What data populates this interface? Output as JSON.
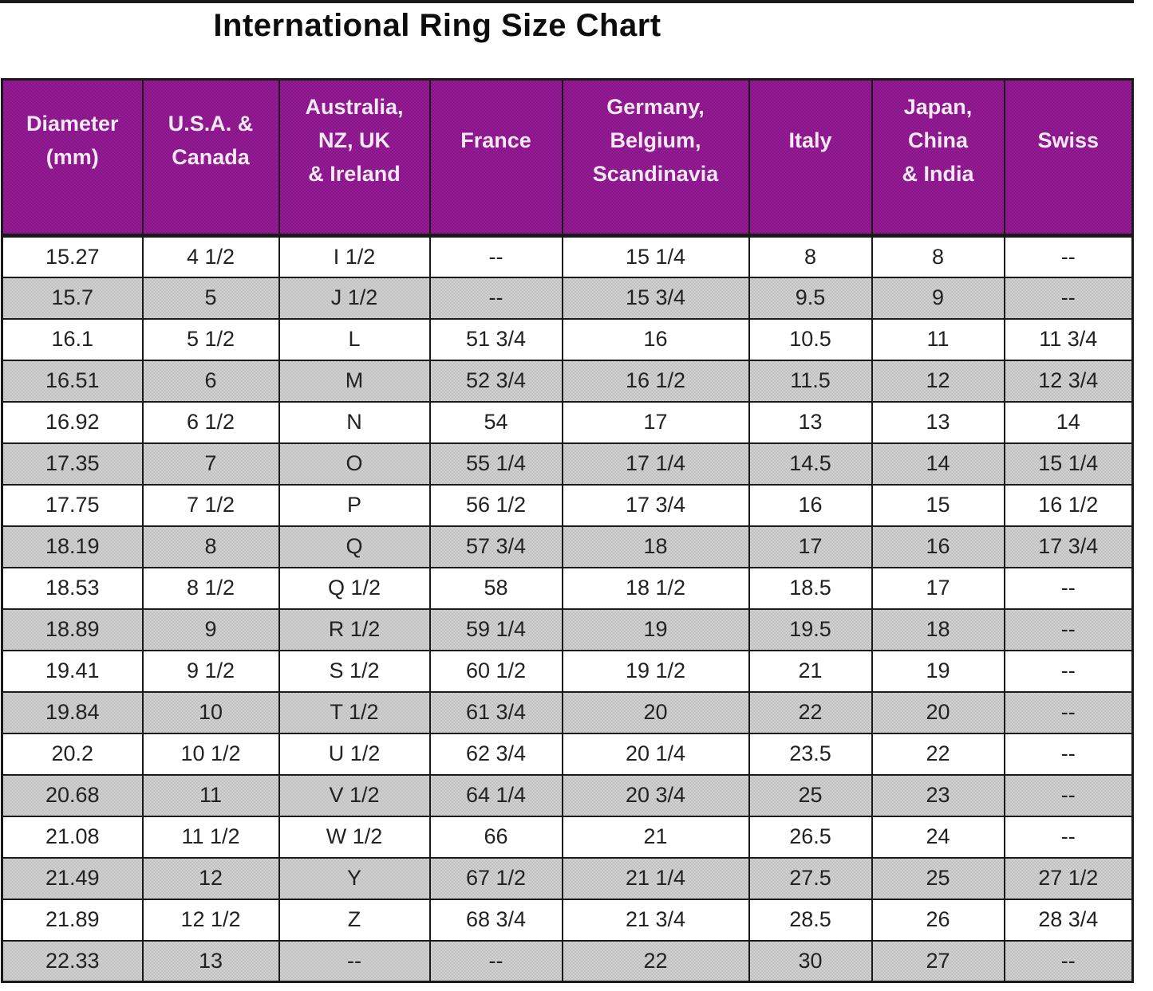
{
  "title": "International Ring Size Chart",
  "colors": {
    "header_bg": "#8E1B8E",
    "header_text": "#F6E9F6",
    "alt_row_bg": "#C9C9C9",
    "grid_border": "#1A1A1A",
    "cell_text": "#222222",
    "title_color": "#0D0D0D"
  },
  "chart_data": {
    "type": "table",
    "title": "International Ring Size Chart",
    "columns": [
      "Diameter (mm)",
      "U.S.A. & Canada",
      "Australia, NZ, UK & Ireland",
      "France",
      "Germany, Belgium, Scandinavia",
      "Italy",
      "Japan, China & India",
      "Swiss"
    ],
    "header_lines": [
      [
        "Diameter",
        "(mm)"
      ],
      [
        "U.S.A. &",
        "Canada"
      ],
      [
        "Australia,",
        "NZ, UK",
        "& Ireland"
      ],
      [
        "France"
      ],
      [
        "Germany,",
        "Belgium,",
        "Scandinavia"
      ],
      [
        "Italy"
      ],
      [
        "Japan,",
        "China",
        "& India"
      ],
      [
        "Swiss"
      ]
    ],
    "rows": [
      [
        "15.27",
        "4 1/2",
        "I 1/2",
        "--",
        "15 1/4",
        "8",
        "8",
        "--"
      ],
      [
        "15.7",
        "5",
        "J 1/2",
        "--",
        "15 3/4",
        "9.5",
        "9",
        "--"
      ],
      [
        "16.1",
        "5 1/2",
        "L",
        "51 3/4",
        "16",
        "10.5",
        "11",
        "11 3/4"
      ],
      [
        "16.51",
        "6",
        "M",
        "52 3/4",
        "16 1/2",
        "11.5",
        "12",
        "12 3/4"
      ],
      [
        "16.92",
        "6 1/2",
        "N",
        "54",
        "17",
        "13",
        "13",
        "14"
      ],
      [
        "17.35",
        "7",
        "O",
        "55 1/4",
        "17 1/4",
        "14.5",
        "14",
        "15 1/4"
      ],
      [
        "17.75",
        "7 1/2",
        "P",
        "56 1/2",
        "17 3/4",
        "16",
        "15",
        "16 1/2"
      ],
      [
        "18.19",
        "8",
        "Q",
        "57 3/4",
        "18",
        "17",
        "16",
        "17 3/4"
      ],
      [
        "18.53",
        "8 1/2",
        "Q 1/2",
        "58",
        "18 1/2",
        "18.5",
        "17",
        "--"
      ],
      [
        "18.89",
        "9",
        "R 1/2",
        "59 1/4",
        "19",
        "19.5",
        "18",
        "--"
      ],
      [
        "19.41",
        "9 1/2",
        "S 1/2",
        "60 1/2",
        "19 1/2",
        "21",
        "19",
        "--"
      ],
      [
        "19.84",
        "10",
        "T 1/2",
        "61 3/4",
        "20",
        "22",
        "20",
        "--"
      ],
      [
        "20.2",
        "10 1/2",
        "U 1/2",
        "62 3/4",
        "20 1/4",
        "23.5",
        "22",
        "--"
      ],
      [
        "20.68",
        "11",
        "V 1/2",
        "64 1/4",
        "20 3/4",
        "25",
        "23",
        "--"
      ],
      [
        "21.08",
        "11 1/2",
        "W 1/2",
        "66",
        "21",
        "26.5",
        "24",
        "--"
      ],
      [
        "21.49",
        "12",
        "Y",
        "67 1/2",
        "21 1/4",
        "27.5",
        "25",
        "27 1/2"
      ],
      [
        "21.89",
        "12 1/2",
        "Z",
        "68 3/4",
        "21 3/4",
        "28.5",
        "26",
        "28 3/4"
      ],
      [
        "22.33",
        "13",
        "--",
        "--",
        "22",
        "30",
        "27",
        "--"
      ]
    ],
    "layout": {
      "row_striping": "alternating white and dithered gray, first data row white",
      "grid": true,
      "header_style": "purple background, white bold multi-line labels"
    }
  }
}
